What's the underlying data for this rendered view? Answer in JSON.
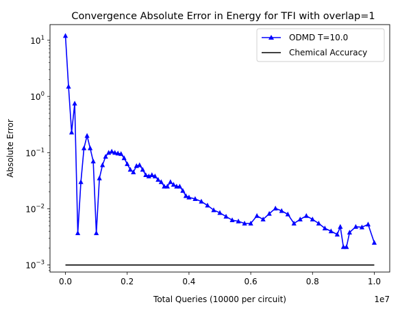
{
  "chart_data": {
    "type": "line",
    "title": "Convergence Absolute Error in Energy for TFI with overlap=1",
    "xlabel": "Total Queries (10000 per circuit)",
    "ylabel": "Absolute Error",
    "x_offset_label": "1e7",
    "xlim": [
      -0.05,
      1.05
    ],
    "ylim": [
      0.00075,
      19
    ],
    "yscale": "log",
    "grid": false,
    "legend_position": "top-right",
    "x_ticks": [
      0.0,
      0.2,
      0.4,
      0.6,
      0.8,
      1.0
    ],
    "x_tick_labels": [
      "0.0",
      "0.2",
      "0.4",
      "0.6",
      "0.8",
      "1.0"
    ],
    "y_ticks": [
      0.001,
      0.01,
      0.1,
      1,
      10
    ],
    "y_tick_labels": [
      {
        "base": "10",
        "exp": "−3"
      },
      {
        "base": "10",
        "exp": "−2"
      },
      {
        "base": "10",
        "exp": "−1"
      },
      {
        "base": "10",
        "exp": "0"
      },
      {
        "base": "10",
        "exp": "1"
      }
    ],
    "series": [
      {
        "name": "ODMD T=10.0",
        "color": "#0000ff",
        "marker": "triangle-up",
        "x": [
          0.0,
          0.01,
          0.02,
          0.03,
          0.04,
          0.05,
          0.06,
          0.07,
          0.08,
          0.09,
          0.1,
          0.11,
          0.12,
          0.13,
          0.14,
          0.15,
          0.16,
          0.17,
          0.18,
          0.19,
          0.2,
          0.21,
          0.22,
          0.23,
          0.24,
          0.25,
          0.26,
          0.27,
          0.28,
          0.29,
          0.3,
          0.31,
          0.32,
          0.33,
          0.34,
          0.35,
          0.36,
          0.37,
          0.38,
          0.39,
          0.4,
          0.42,
          0.44,
          0.46,
          0.48,
          0.5,
          0.52,
          0.54,
          0.56,
          0.58,
          0.6,
          0.62,
          0.64,
          0.66,
          0.68,
          0.7,
          0.72,
          0.74,
          0.76,
          0.78,
          0.8,
          0.82,
          0.84,
          0.86,
          0.88,
          0.89,
          0.9,
          0.91,
          0.92,
          0.94,
          0.96,
          0.98,
          1.0
        ],
        "y": [
          12,
          1.5,
          0.23,
          0.75,
          0.0037,
          0.03,
          0.12,
          0.2,
          0.12,
          0.07,
          0.0037,
          0.035,
          0.06,
          0.085,
          0.1,
          0.105,
          0.1,
          0.097,
          0.095,
          0.08,
          0.063,
          0.05,
          0.045,
          0.058,
          0.06,
          0.05,
          0.04,
          0.038,
          0.04,
          0.038,
          0.033,
          0.03,
          0.025,
          0.025,
          0.03,
          0.027,
          0.025,
          0.025,
          0.021,
          0.017,
          0.016,
          0.015,
          0.0135,
          0.0115,
          0.0095,
          0.0085,
          0.0073,
          0.0063,
          0.006,
          0.0055,
          0.0055,
          0.0075,
          0.0065,
          0.0082,
          0.0102,
          0.0092,
          0.008,
          0.0055,
          0.0065,
          0.0075,
          0.0065,
          0.0055,
          0.0045,
          0.004,
          0.0035,
          0.0048,
          0.0021,
          0.0021,
          0.0038,
          0.0048,
          0.0047,
          0.0053,
          0.0025
        ]
      },
      {
        "name": "Chemical Accuracy",
        "color": "#000000",
        "marker": "none",
        "x": [
          0.0,
          1.0
        ],
        "y": [
          0.001,
          0.001
        ]
      }
    ]
  }
}
